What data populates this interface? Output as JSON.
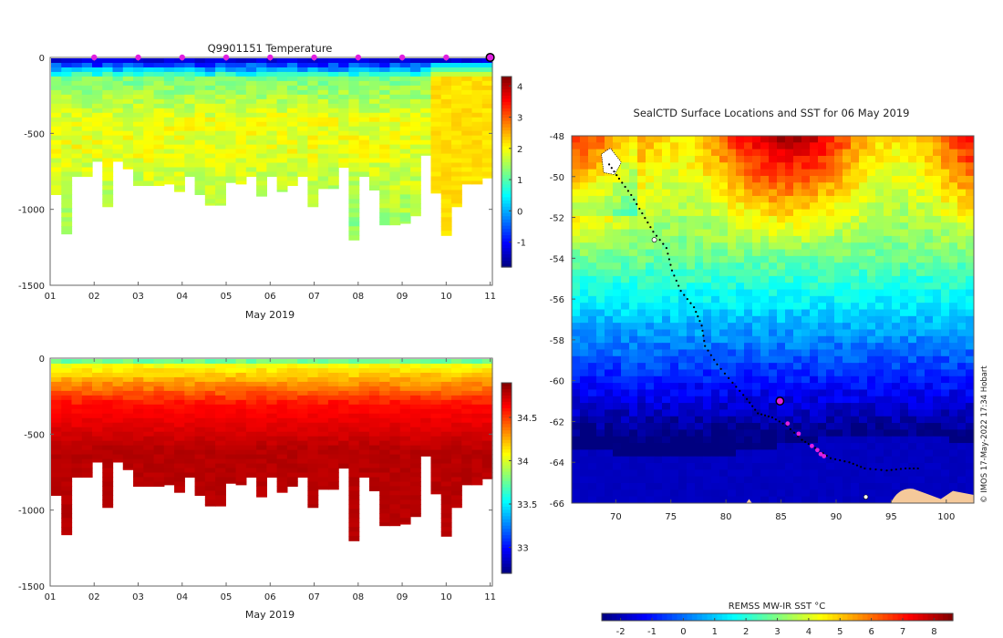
{
  "colors": {
    "marker_magenta": "#e020e0",
    "track_black": "#000000",
    "land": "#f5c99a",
    "missing": "#ffffff"
  },
  "chart_data": [
    {
      "id": "temperature_section",
      "type": "heatmap",
      "title": "Q9901151  Temperature",
      "xlabel": "May 2019",
      "ylabel": "",
      "xlim": [
        1,
        11.05
      ],
      "ylim": [
        -1500,
        0
      ],
      "x_ticks": [
        "01",
        "02",
        "03",
        "04",
        "05",
        "06",
        "07",
        "08",
        "09",
        "10",
        "11"
      ],
      "y_ticks": [
        "0",
        "-500",
        "-1000",
        "-1500"
      ],
      "colorbar": {
        "range": [
          -1.8,
          4.3
        ],
        "ticks": [
          "4",
          "3",
          "2",
          "1",
          "0",
          "-1"
        ],
        "colormap": "jet"
      },
      "profile_markers_day": [
        2,
        3,
        4,
        5,
        6,
        7,
        8,
        9,
        10
      ],
      "latest_profile_day": 11,
      "profile_max_depth_m": [
        900,
        1160,
        780,
        780,
        680,
        980,
        680,
        730,
        840,
        840,
        840,
        830,
        880,
        780,
        900,
        970,
        970,
        820,
        830,
        780,
        910,
        780,
        880,
        840,
        780,
        980,
        860,
        860,
        720,
        1200,
        780,
        870,
        1100,
        1100,
        1090,
        1040,
        640,
        890,
        1170,
        980,
        830,
        830,
        790
      ]
    },
    {
      "id": "salinity_section",
      "type": "heatmap",
      "title": "",
      "xlabel": "May 2019",
      "ylabel": "",
      "xlim": [
        1,
        11.05
      ],
      "ylim": [
        -1500,
        0
      ],
      "x_ticks": [
        "01",
        "02",
        "03",
        "04",
        "05",
        "06",
        "07",
        "08",
        "09",
        "10",
        "11"
      ],
      "y_ticks": [
        "0",
        "-500",
        "-1000",
        "-1500"
      ],
      "colorbar": {
        "range": [
          32.7,
          34.9
        ],
        "ticks": [
          "34.5",
          "34",
          "33.5",
          "33"
        ],
        "colormap": "jet"
      }
    },
    {
      "id": "sst_map",
      "type": "heatmap",
      "title": "SealCTD Surface Locations and SST for 06 May 2019",
      "xlabel": "",
      "ylabel": "",
      "xlim": [
        66,
        102.5
      ],
      "ylim": [
        -66,
        -48
      ],
      "x_ticks": [
        "70",
        "75",
        "80",
        "85",
        "90",
        "95",
        "100"
      ],
      "y_ticks": [
        "-48",
        "-50",
        "-52",
        "-54",
        "-56",
        "-58",
        "-60",
        "-62",
        "-64",
        "-66"
      ],
      "credit": "© IMOS 17-May-2022 17:34 Hobart",
      "colorbar": {
        "label": "REMSS MW-IR SST °C",
        "range": [
          -2.6,
          8.6
        ],
        "ticks": [
          "-2",
          "-1",
          "0",
          "1",
          "2",
          "3",
          "4",
          "5",
          "6",
          "7",
          "8"
        ],
        "colormap": "jet"
      },
      "track_lon_lat": [
        [
          69.4,
          -49.4
        ],
        [
          70.3,
          -50.1
        ],
        [
          71.4,
          -50.9
        ],
        [
          72.4,
          -51.8
        ],
        [
          73.4,
          -52.7
        ],
        [
          74.6,
          -53.5
        ],
        [
          75.1,
          -54.6
        ],
        [
          75.9,
          -55.6
        ],
        [
          77.1,
          -56.4
        ],
        [
          77.8,
          -57.3
        ],
        [
          78.1,
          -58.3
        ],
        [
          79.2,
          -59.2
        ],
        [
          80.6,
          -60.1
        ],
        [
          81.9,
          -60.9
        ],
        [
          82.9,
          -61.6
        ],
        [
          84.2,
          -61.8
        ],
        [
          85.5,
          -62.2
        ],
        [
          86.9,
          -62.9
        ],
        [
          88.1,
          -63.3
        ],
        [
          89.5,
          -63.8
        ],
        [
          91.2,
          -64.0
        ],
        [
          92.6,
          -64.3
        ],
        [
          94.6,
          -64.4
        ],
        [
          96.3,
          -64.3
        ],
        [
          97.8,
          -64.3
        ]
      ],
      "current_position_lon_lat": [
        84.9,
        -61.0
      ],
      "recent_positions_lon_lat": [
        [
          85.6,
          -62.1
        ],
        [
          86.6,
          -62.6
        ],
        [
          87.8,
          -63.2
        ],
        [
          88.3,
          -63.4
        ],
        [
          88.6,
          -63.6
        ],
        [
          88.9,
          -63.7
        ]
      ]
    }
  ]
}
